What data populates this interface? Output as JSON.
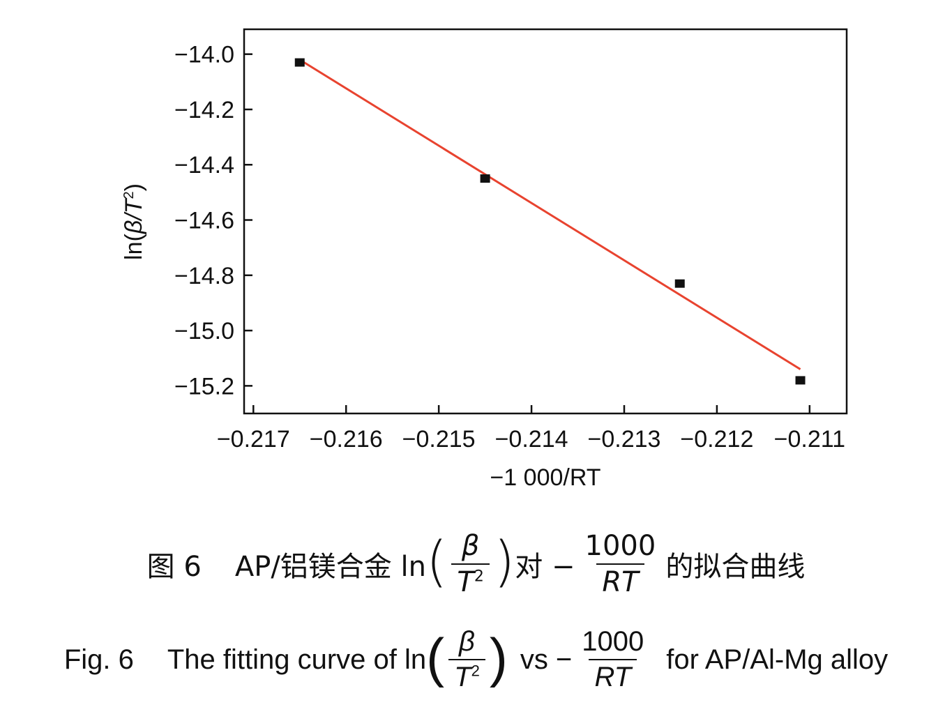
{
  "chart_data": {
    "type": "scatter",
    "xlabel": "−1 000/RT",
    "ylabel_prefix": "ln(",
    "ylabel_var": "β/T",
    "ylabel_sup": "2",
    "ylabel_suffix": ")",
    "xlim": [
      -0.2171,
      -0.2106
    ],
    "ylim": [
      -15.3,
      -13.91
    ],
    "xticks": [
      -0.217,
      -0.216,
      -0.215,
      -0.214,
      -0.213,
      -0.212,
      -0.211
    ],
    "xtick_labels": [
      "−0.217",
      "−0.216",
      "−0.215",
      "−0.214",
      "−0.213",
      "−0.212",
      "−0.211"
    ],
    "yticks": [
      -14.0,
      -14.2,
      -14.4,
      -14.6,
      -14.8,
      -15.0,
      -15.2
    ],
    "ytick_labels": [
      "−14.0",
      "−14.2",
      "−14.4",
      "−14.6",
      "−14.8",
      "−15.0",
      "−15.2"
    ],
    "series": [
      {
        "kind": "points",
        "x": [
          -0.2165,
          -0.2145,
          -0.2124,
          -0.2111
        ],
        "y": [
          -14.03,
          -14.45,
          -14.83,
          -15.18
        ],
        "color": "#111111"
      },
      {
        "kind": "fit",
        "x": [
          -0.2165,
          -0.2111
        ],
        "y": [
          -14.02,
          -15.14
        ],
        "color": "#e8432f"
      }
    ],
    "grid": false
  },
  "caption_cn": {
    "label": "图 6",
    "prefix": "AP/铝镁合金 ln",
    "beta": "β",
    "T": "T",
    "sq": "2",
    "middle": "对 −",
    "num": "1000",
    "den": "RT",
    "suffix": "的拟合曲线"
  },
  "caption_en": {
    "label": "Fig. 6",
    "prefix": "The fitting curve of ln",
    "beta": "β",
    "T": "T",
    "sq": "2",
    "middle": "vs −",
    "num": "1000",
    "den": "RT",
    "suffix": "for AP/Al-Mg alloy"
  }
}
